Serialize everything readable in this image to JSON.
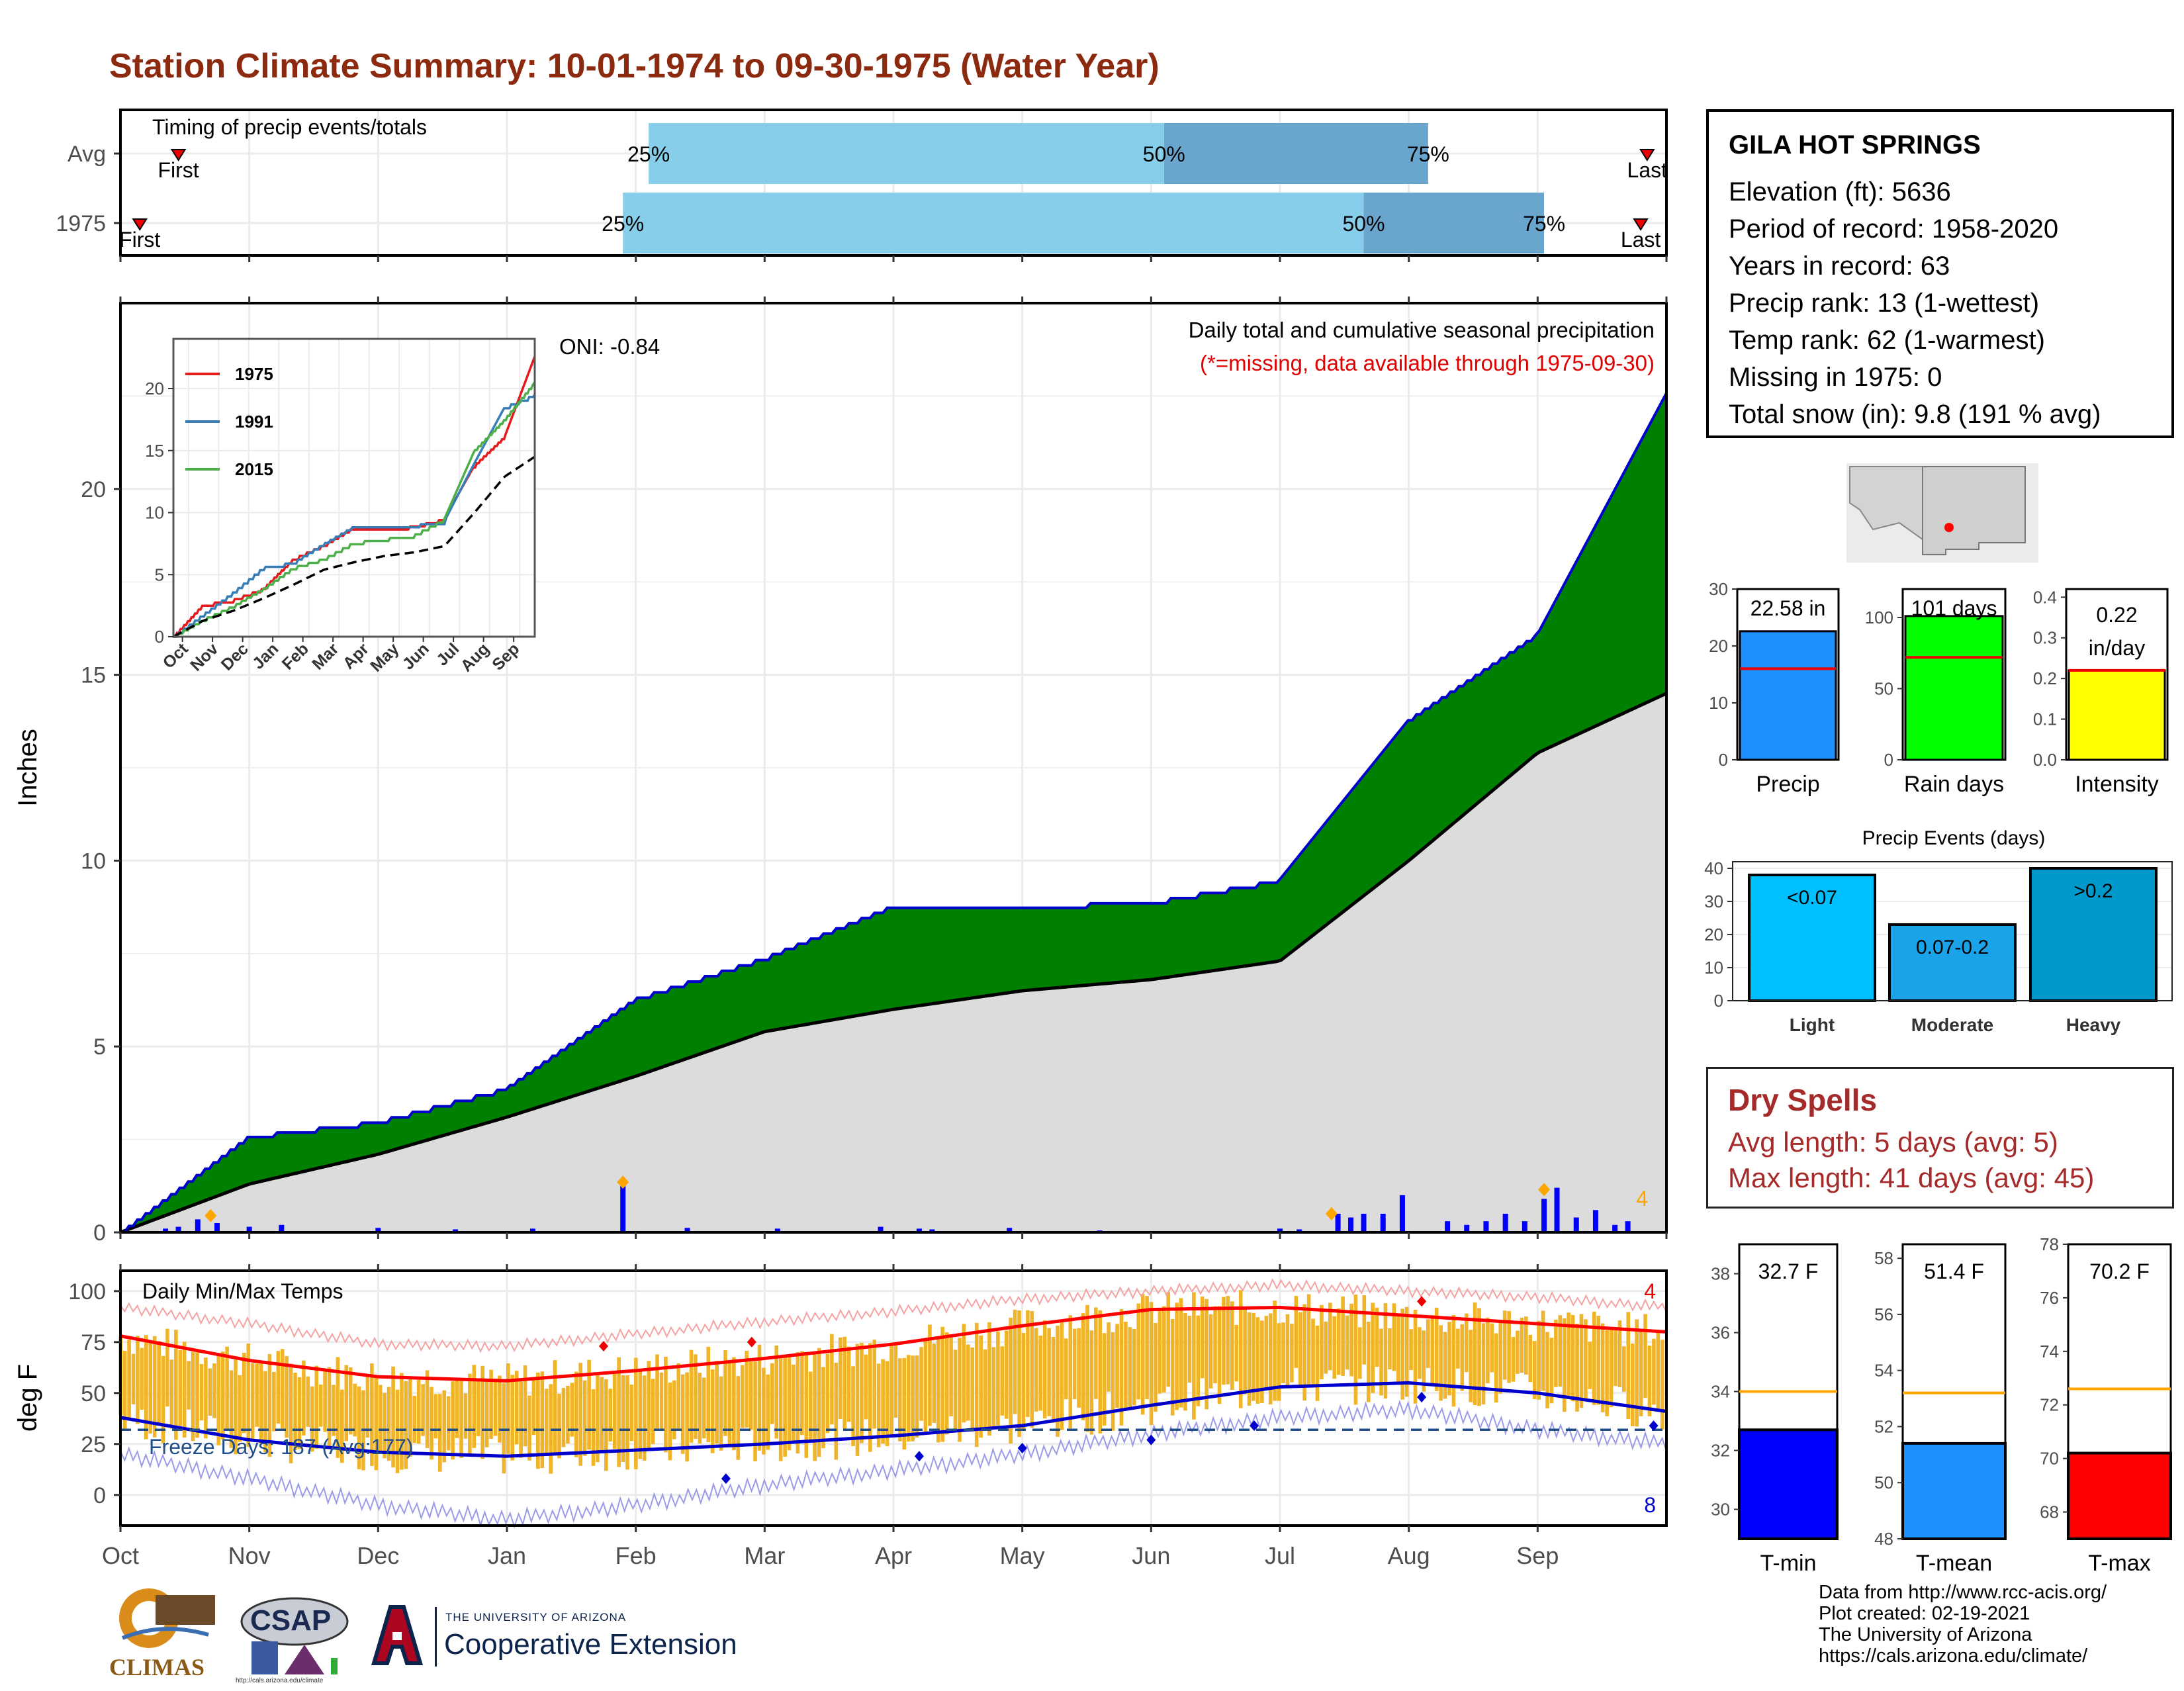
{
  "title": "Station Climate Summary: 10-01-1974 to 09-30-1975 (Water Year)",
  "colors": {
    "title": "#8b2a0e",
    "cumulative": "#008000",
    "cumulative_line": "#0000cd",
    "average_area": "#dcdcdc",
    "daily_bar": "#0000ff",
    "temp_bar": "#f0b429",
    "tmax_line": "#ff0000",
    "tmin_line": "#0000cd"
  },
  "timing_panel": {
    "label": "Timing of precip events/totals",
    "rows": [
      {
        "name": "Avg",
        "first_label": "First",
        "last_label": "Last",
        "first_month": 0.45,
        "last_month": 11.85,
        "q25": 4.1,
        "q50": 8.1,
        "q75": 10.15,
        "labels": [
          "25%",
          "50%",
          "75%"
        ]
      },
      {
        "name": "1975",
        "first_label": "First",
        "last_label": "Last",
        "first_month": 0.15,
        "last_month": 11.8,
        "q25": 3.9,
        "q50": 9.65,
        "q75": 11.05,
        "labels": [
          "25%",
          "50%",
          "75%"
        ]
      }
    ]
  },
  "precip_panel": {
    "ylabel": "Inches",
    "yticks": [
      "0",
      "5",
      "10",
      "15",
      "20"
    ],
    "note1": "Daily total and cumulative seasonal precipitation",
    "note2": "(*=missing, data available through 1975-09-30)",
    "oni": "ONI: -0.84",
    "corner_count": "4",
    "inset": {
      "xticks": [
        "Oct",
        "Nov",
        "Dec",
        "Jan",
        "Feb",
        "Mar",
        "Apr",
        "May",
        "Jun",
        "Jul",
        "Aug",
        "Sep"
      ],
      "yticks": [
        "0",
        "5",
        "10",
        "15",
        "20"
      ],
      "legend": [
        {
          "name": "1975",
          "color": "#e41a1c"
        },
        {
          "name": "1991",
          "color": "#377eb8"
        },
        {
          "name": "2015",
          "color": "#4daf4a"
        }
      ]
    }
  },
  "temp_panel": {
    "ylabel": "deg F",
    "label": "Daily Min/Max Temps",
    "freeze_label": "Freeze Days: 187 (Avg:177)",
    "yticks": [
      "0",
      "25",
      "50",
      "75",
      "100"
    ],
    "count_top": "4",
    "count_bottom": "8"
  },
  "months": [
    "Oct",
    "Nov",
    "Dec",
    "Jan",
    "Feb",
    "Mar",
    "Apr",
    "May",
    "Jun",
    "Jul",
    "Aug",
    "Sep"
  ],
  "station": {
    "name": "GILA HOT SPRINGS",
    "lines": [
      "Elevation (ft): 5636",
      "Period of record: 1958-2020",
      "Years in record: 63",
      "Precip rank: 13 (1-wettest)",
      "Temp rank: 62 (1-warmest)",
      "Missing in 1975: 0",
      "Total snow (in): 9.8 (191 % avg)"
    ]
  },
  "summary_bars": [
    {
      "label": "Precip",
      "value_label": "22.58 in",
      "color": "#1e90ff",
      "yticks": [
        "0",
        "10",
        "20",
        "30"
      ]
    },
    {
      "label": "Rain days",
      "value_label": "101 days",
      "color": "#00ff00",
      "yticks": [
        "0",
        "50",
        "100"
      ]
    },
    {
      "label": "Intensity",
      "value_label": "0.22",
      "value_label2": "in/day",
      "color": "#ffff00",
      "yticks": [
        "0.0",
        "0.1",
        "0.2",
        "0.3",
        "0.4"
      ]
    }
  ],
  "events_chart": {
    "title": "Precip Events (days)",
    "yticks": [
      "0",
      "10",
      "20",
      "30",
      "40"
    ],
    "bars": [
      {
        "label": "Light",
        "bar_label": "<0.07",
        "color": "#00bfff"
      },
      {
        "label": "Moderate",
        "bar_label": "0.07-0.2",
        "color": "#1aa3e8"
      },
      {
        "label": "Heavy",
        "bar_label": ">0.2",
        "color": "#0099cc"
      }
    ]
  },
  "dry_spells": {
    "title": "Dry Spells",
    "avg_line": "Avg length: 5 days (avg: 5)",
    "max_line": "Max length: 41 days (avg: 45)"
  },
  "temp_bars": [
    {
      "label": "T-min",
      "value_label": "32.7 F",
      "color": "#0000ff",
      "yticks": [
        "30",
        "32",
        "34",
        "36",
        "38"
      ]
    },
    {
      "label": "T-mean",
      "value_label": "51.4 F",
      "color": "#1e90ff",
      "yticks": [
        "48",
        "50",
        "52",
        "54",
        "56",
        "58"
      ]
    },
    {
      "label": "T-max",
      "value_label": "70.2 F",
      "color": "#ff0000",
      "yticks": [
        "68",
        "70",
        "72",
        "74",
        "76",
        "78"
      ]
    }
  ],
  "credits": [
    "Data from http://www.rcc-acis.org/",
    "Plot created: 02-19-2021",
    "The University of Arizona",
    "https://cals.arizona.edu/climate/"
  ],
  "logos": {
    "climas": "CLIMAS",
    "csap": "CSAP",
    "csap_url": "http://cals.arizona.edu/climate",
    "ua_small": "THE UNIVERSITY OF ARIZONA",
    "ua_big": "Cooperative Extension"
  },
  "chart_data": [
    {
      "type": "area",
      "name": "cumulative precipitation",
      "x": [
        "Oct",
        "Nov",
        "Dec",
        "Jan",
        "Feb",
        "Mar",
        "Apr",
        "May",
        "Jun",
        "Jul",
        "Aug",
        "Sep",
        "Sep-30"
      ],
      "series": [
        {
          "name": "1975 cumulative",
          "values": [
            0,
            2.6,
            3.0,
            3.9,
            6.3,
            7.4,
            8.8,
            8.8,
            8.9,
            9.5,
            13.8,
            16.1,
            22.58
          ]
        },
        {
          "name": "average cumulative",
          "values": [
            0,
            1.3,
            2.1,
            3.1,
            4.2,
            5.4,
            6.0,
            6.5,
            6.8,
            7.3,
            10.0,
            12.9,
            14.5
          ]
        }
      ],
      "ylim": [
        0,
        25
      ]
    },
    {
      "type": "line",
      "name": "inset cumulative comparison",
      "x": [
        "Oct",
        "Nov",
        "Dec",
        "Jan",
        "Feb",
        "Mar",
        "Apr",
        "May",
        "Jun",
        "Jul",
        "Aug",
        "Sep",
        "Sep-30"
      ],
      "series": [
        {
          "name": "1975",
          "values": [
            0,
            2.6,
            3.0,
            3.9,
            6.3,
            7.4,
            8.8,
            8.8,
            8.9,
            9.5,
            13.8,
            16.1,
            22.58
          ]
        },
        {
          "name": "1991",
          "values": [
            0,
            1.8,
            3.6,
            5.6,
            6.0,
            7.5,
            8.9,
            9.0,
            9.0,
            9.3,
            14.0,
            18.5,
            19.5
          ]
        },
        {
          "name": "2015",
          "values": [
            0,
            1.4,
            2.5,
            3.9,
            5.6,
            6.3,
            7.6,
            7.9,
            8.2,
            9.5,
            15.0,
            17.5,
            20.5
          ]
        },
        {
          "name": "average",
          "values": [
            0,
            1.3,
            2.1,
            3.1,
            4.2,
            5.4,
            6.0,
            6.5,
            6.8,
            7.3,
            10.0,
            12.9,
            14.5
          ]
        }
      ],
      "ylim": [
        0,
        24
      ]
    },
    {
      "type": "line",
      "name": "daily temperatures",
      "x": [
        "Oct",
        "Nov",
        "Dec",
        "Jan",
        "Feb",
        "Mar",
        "Apr",
        "May",
        "Jun",
        "Jul",
        "Aug",
        "Sep",
        "Sep-30"
      ],
      "series": [
        {
          "name": "normal max",
          "values": [
            78,
            66,
            58,
            56,
            61,
            67,
            74,
            83,
            91,
            92,
            88,
            84,
            80
          ]
        },
        {
          "name": "normal min",
          "values": [
            38,
            27,
            21,
            19,
            22,
            25,
            29,
            34,
            44,
            53,
            55,
            50,
            41
          ]
        },
        {
          "name": "record max",
          "values": [
            92,
            84,
            74,
            73,
            79,
            85,
            90,
            96,
            100,
            103,
            100,
            97,
            92
          ]
        },
        {
          "name": "record min",
          "values": [
            20,
            8,
            -5,
            -12,
            -5,
            5,
            12,
            20,
            30,
            38,
            42,
            32,
            25
          ]
        }
      ],
      "freeze_threshold": 32,
      "ylim": [
        -15,
        110
      ]
    },
    {
      "type": "bar",
      "name": "season totals",
      "categories": [
        "Precip",
        "Rain days",
        "Intensity"
      ],
      "values": [
        22.58,
        101,
        0.22
      ],
      "averages": [
        16,
        72,
        0.22
      ]
    },
    {
      "type": "bar",
      "name": "Precip Events (days)",
      "categories": [
        "Light",
        "Moderate",
        "Heavy"
      ],
      "values": [
        38,
        23,
        40
      ],
      "ylim": [
        0,
        42
      ]
    },
    {
      "type": "bar",
      "name": "temperature means",
      "categories": [
        "T-min",
        "T-mean",
        "T-max"
      ],
      "values": [
        32.7,
        51.4,
        70.2
      ],
      "averages": [
        34.0,
        53.2,
        72.6
      ],
      "ylims": [
        [
          29,
          39
        ],
        [
          48,
          58.5
        ],
        [
          67,
          78
        ]
      ]
    }
  ]
}
